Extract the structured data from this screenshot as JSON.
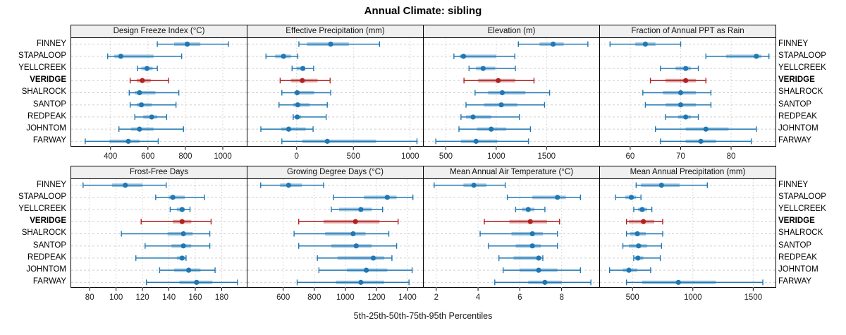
{
  "title": "Annual Climate: sibling",
  "caption": "5th-25th-50th-75th-95th Percentiles",
  "colors": {
    "normal": "#1F77B4",
    "highlight": "#B22222",
    "grid": "#CFCFCF",
    "header_bg": "#F0F0F0",
    "border": "#000000",
    "tick_text": "#222222"
  },
  "chart_data": {
    "type": "trellis-percentile-dotplot",
    "percentiles": [
      "5th",
      "25th",
      "50th",
      "75th",
      "95th"
    ],
    "sites": [
      "FINNEY",
      "STAPALOOP",
      "YELLCREEK",
      "VERIDGE",
      "SHALROCK",
      "SANTOP",
      "REDPEAK",
      "JOHNTOM",
      "FARWAY"
    ],
    "highlight_site": "VERIDGE",
    "layout": {
      "rows": 2,
      "cols": 4
    },
    "panels": [
      {
        "title": "Design Freeze Index (°C)",
        "ticks": [
          400,
          600,
          800,
          1000
        ],
        "domain": [
          190,
          1128
        ],
        "values": [
          [
            650,
            740,
            810,
            880,
            1030
          ],
          [
            385,
            420,
            455,
            630,
            780
          ],
          [
            545,
            565,
            595,
            625,
            650
          ],
          [
            505,
            540,
            570,
            615,
            710
          ],
          [
            500,
            530,
            555,
            640,
            765
          ],
          [
            505,
            540,
            565,
            620,
            750
          ],
          [
            530,
            575,
            620,
            650,
            700
          ],
          [
            445,
            510,
            555,
            630,
            790
          ],
          [
            265,
            395,
            495,
            555,
            655
          ]
        ]
      },
      {
        "title": "Effective Precipitation (mm)",
        "ticks": [
          0,
          500,
          1000
        ],
        "domain": [
          -433,
          1113
        ],
        "values": [
          [
            20,
            90,
            300,
            460,
            730
          ],
          [
            -270,
            -190,
            -115,
            -50,
            10
          ],
          [
            -40,
            0,
            55,
            70,
            150
          ],
          [
            -145,
            -50,
            50,
            185,
            295
          ],
          [
            -130,
            -20,
            5,
            155,
            300
          ],
          [
            -155,
            -30,
            10,
            115,
            270
          ],
          [
            -30,
            -15,
            5,
            40,
            260
          ],
          [
            -315,
            -135,
            -70,
            80,
            145
          ],
          [
            -130,
            50,
            270,
            700,
            1060
          ]
        ]
      },
      {
        "title": "Elevation (m)",
        "ticks": [
          500,
          1000,
          1500
        ],
        "domain": [
          280,
          2023
        ],
        "values": [
          [
            1220,
            1430,
            1565,
            1670,
            1910
          ],
          [
            580,
            635,
            675,
            1000,
            1185
          ],
          [
            730,
            800,
            870,
            990,
            1190
          ],
          [
            680,
            820,
            1020,
            1190,
            1375
          ],
          [
            790,
            920,
            1060,
            1290,
            1530
          ],
          [
            700,
            880,
            1050,
            1210,
            1480
          ],
          [
            650,
            700,
            770,
            950,
            1230
          ],
          [
            630,
            810,
            950,
            1100,
            1340
          ],
          [
            400,
            650,
            800,
            1010,
            1320
          ]
        ]
      },
      {
        "title": "Fraction of Annual PPT as Rain",
        "ticks": [
          60,
          70,
          80
        ],
        "domain": [
          54,
          88.8
        ],
        "values": [
          [
            56,
            61,
            63,
            65,
            70
          ],
          [
            75,
            79,
            85,
            86,
            87.5
          ],
          [
            66,
            69,
            71,
            72,
            73.5
          ],
          [
            64,
            67,
            71,
            73,
            75
          ],
          [
            62.5,
            66.5,
            70,
            73,
            76
          ],
          [
            63,
            67,
            70,
            73,
            76
          ],
          [
            67,
            69.5,
            71,
            72,
            73.5
          ],
          [
            65,
            71,
            75,
            79.5,
            85
          ],
          [
            66,
            71,
            74,
            77,
            84
          ]
        ]
      },
      {
        "title": "Frost-Free Days",
        "ticks": [
          80,
          100,
          120,
          140,
          160,
          180
        ],
        "domain": [
          66,
          199
        ],
        "values": [
          [
            75,
            97,
            107,
            120,
            138
          ],
          [
            130,
            140,
            143,
            152,
            167
          ],
          [
            141,
            146,
            150,
            152,
            156
          ],
          [
            119,
            143,
            150,
            157,
            172
          ],
          [
            104,
            139,
            151,
            158,
            171
          ],
          [
            122,
            142,
            151,
            157,
            171
          ],
          [
            115,
            146,
            150,
            152,
            153
          ],
          [
            133,
            144,
            155,
            164,
            175
          ],
          [
            123,
            148,
            161,
            173,
            192
          ]
        ]
      },
      {
        "title": "Growing Degree Days (°C)",
        "ticks": [
          600,
          800,
          1000,
          1200,
          1400
        ],
        "domain": [
          370,
          1500
        ],
        "values": [
          [
            455,
            580,
            635,
            720,
            860
          ],
          [
            925,
            1120,
            1270,
            1330,
            1435
          ],
          [
            910,
            960,
            1100,
            1170,
            1240
          ],
          [
            700,
            860,
            1065,
            1220,
            1340
          ],
          [
            670,
            870,
            1050,
            1130,
            1280
          ],
          [
            700,
            910,
            1070,
            1170,
            1330
          ],
          [
            820,
            950,
            1180,
            1250,
            1300
          ],
          [
            830,
            1010,
            1135,
            1270,
            1430
          ],
          [
            690,
            940,
            1100,
            1250,
            1410
          ]
        ]
      },
      {
        "title": "Mean Annual Air Temperature (°C)",
        "ticks": [
          2,
          4,
          6,
          8
        ],
        "domain": [
          1.4,
          9.8
        ],
        "values": [
          [
            1.9,
            3.3,
            3.8,
            4.4,
            5.3
          ],
          [
            5.4,
            6.6,
            7.8,
            8.2,
            8.9
          ],
          [
            5.8,
            6.1,
            6.4,
            6.7,
            7.2
          ],
          [
            4.3,
            5.5,
            6.5,
            7.3,
            7.9
          ],
          [
            4.1,
            5.6,
            6.6,
            7.1,
            7.8
          ],
          [
            4.5,
            5.8,
            6.6,
            7.0,
            7.8
          ],
          [
            5.0,
            5.7,
            6.9,
            7.0,
            7.1
          ],
          [
            5.2,
            6.0,
            6.9,
            7.8,
            8.9
          ],
          [
            4.8,
            6.4,
            7.2,
            8.0,
            9.4
          ]
        ]
      },
      {
        "title": "Mean Annual Precipitation (mm)",
        "ticks": [
          500,
          1000,
          1500
        ],
        "domain": [
          230,
          1685
        ],
        "values": [
          [
            530,
            570,
            740,
            890,
            1120
          ],
          [
            360,
            440,
            490,
            530,
            570
          ],
          [
            510,
            545,
            580,
            620,
            660
          ],
          [
            450,
            470,
            590,
            680,
            750
          ],
          [
            450,
            480,
            540,
            610,
            750
          ],
          [
            420,
            470,
            550,
            620,
            740
          ],
          [
            510,
            520,
            545,
            590,
            730
          ],
          [
            310,
            420,
            470,
            540,
            650
          ],
          [
            450,
            580,
            880,
            1190,
            1580
          ]
        ]
      }
    ]
  }
}
